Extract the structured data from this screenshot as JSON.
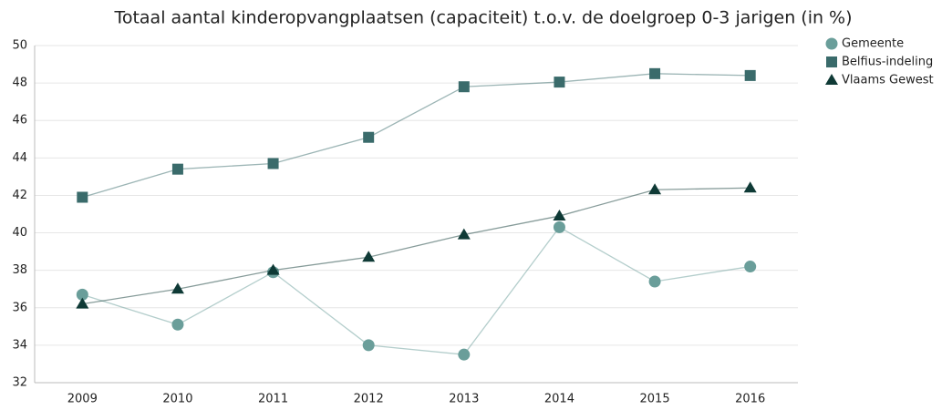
{
  "chart_data": {
    "type": "line",
    "title": "Totaal aantal kinderopvangplaatsen (capaciteit) t.o.v. de doelgroep 0-3 jarigen (in %)",
    "categories": [
      "2009",
      "2010",
      "2011",
      "2012",
      "2013",
      "2014",
      "2015",
      "2016"
    ],
    "series": [
      {
        "name": "Gemeente",
        "color": "#6a9e9a",
        "marker": "circle",
        "values": [
          36.7,
          35.1,
          37.9,
          34.0,
          33.5,
          40.3,
          37.4,
          38.2
        ]
      },
      {
        "name": "Belfius-indeling",
        "color": "#3a6b6b",
        "marker": "square",
        "values": [
          41.9,
          43.4,
          43.7,
          45.1,
          47.8,
          48.05,
          48.5,
          48.4
        ]
      },
      {
        "name": "Vlaams Gewest",
        "color": "#0f3a36",
        "marker": "triangle",
        "values": [
          36.2,
          37.0,
          38.0,
          38.7,
          39.9,
          40.9,
          42.3,
          42.4
        ]
      }
    ],
    "ylim": [
      32,
      50
    ],
    "yticks": [
      32,
      34,
      36,
      38,
      40,
      42,
      44,
      46,
      48,
      50
    ],
    "grid": true,
    "legend": "right"
  }
}
